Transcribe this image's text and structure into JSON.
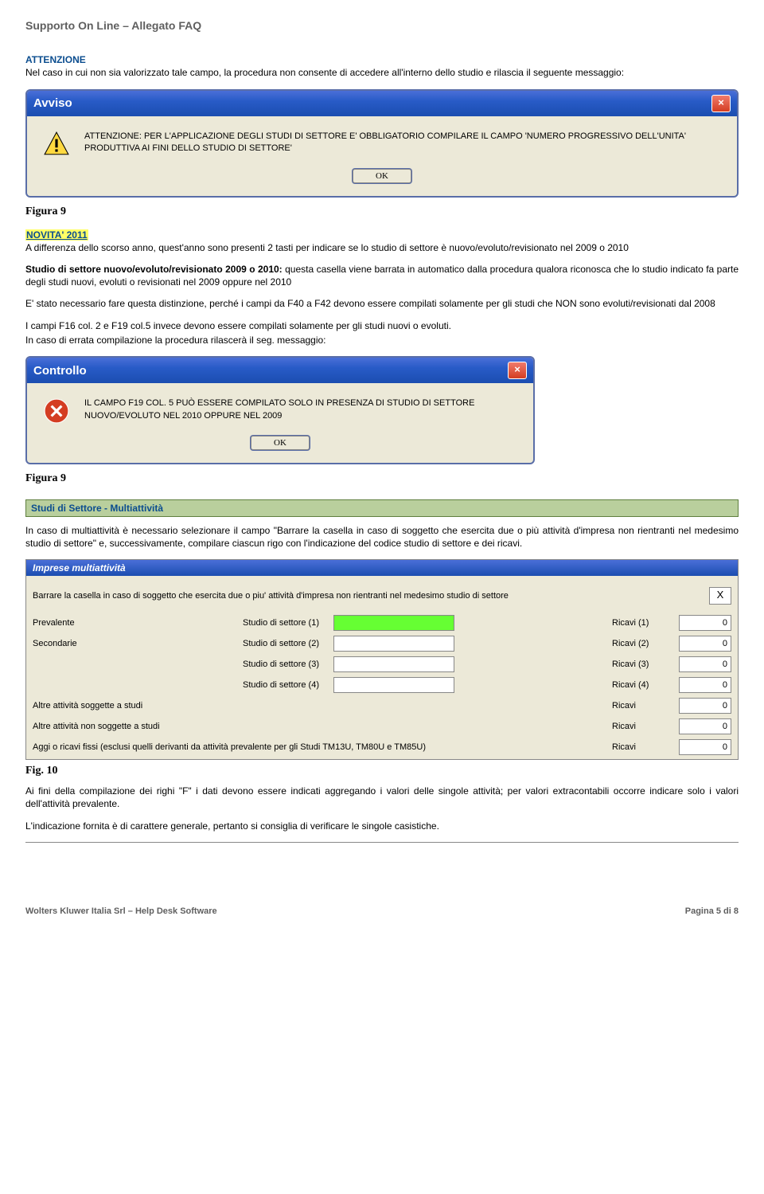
{
  "header": {
    "title": "Supporto On Line – Allegato FAQ"
  },
  "attention": {
    "label": "ATTENZIONE",
    "text": "Nel caso in cui non sia valorizzato tale campo, la procedura non consente di accedere all'interno dello studio e rilascia il seguente messaggio:"
  },
  "dialog1": {
    "title": "Avviso",
    "body": "ATTENZIONE: PER L'APPLICAZIONE DEGLI STUDI DI SETTORE E' OBBLIGATORIO COMPILARE IL CAMPO 'NUMERO PROGRESSIVO DELL'UNITA' PRODUTTIVA AI FINI DELLO STUDIO DI SETTORE'",
    "ok": "OK"
  },
  "fig9": "Figura 9",
  "novita": {
    "label": "NOVITA' 2011",
    "text1": "A differenza dello scorso anno, quest'anno sono presenti 2 tasti per indicare se lo studio di settore è nuovo/evoluto/revisionato nel 2009 o 2010",
    "bold": "Studio di settore nuovo/evoluto/revisionato 2009 o 2010:",
    "text2": " questa casella viene barrata in automatico dalla procedura qualora riconosca che lo studio indicato fa parte degli studi nuovi, evoluti o revisionati nel 2009 oppure nel 2010"
  },
  "para3": "E' stato necessario fare questa distinzione, perché i campi da F40 a F42 devono essere compilati solamente per gli studi che NON sono evoluti/revisionati dal 2008",
  "para4": "I campi F16 col. 2 e F19 col.5 invece devono essere compilati solamente per gli studi nuovi o evoluti.",
  "para5": "In caso di errata compilazione la procedura rilascerà il seg. messaggio:",
  "dialog2": {
    "title": "Controllo",
    "body": "IL CAMPO F19 COL. 5 PUÒ ESSERE COMPILATO SOLO IN PRESENZA DI STUDIO DI SETTORE NUOVO/EVOLUTO NEL 2010 OPPURE NEL 2009",
    "ok": "OK"
  },
  "section_multi": {
    "heading": "Studi di Settore - Multiattività",
    "text": "In caso di multiattività è necessario selezionare il campo \"Barrare la casella in caso di soggetto che esercita due o più attività d'impresa non rientranti nel medesimo studio di settore\" e, successivamente, compilare ciascun rigo con l'indicazione del codice studio di settore e dei ricavi."
  },
  "panel": {
    "title": "Imprese multiattività",
    "barrare": "Barrare la casella in caso di soggetto che esercita due o piu' attività d'impresa non rientranti nel medesimo studio di settore",
    "xval": "X",
    "rows": [
      {
        "left": "Prevalente",
        "label": "Studio di settore (1)",
        "green": true,
        "ricavi": "Ricavi (1)",
        "val": "0"
      },
      {
        "left": "Secondarie",
        "label": "Studio di settore (2)",
        "green": false,
        "ricavi": "Ricavi (2)",
        "val": "0"
      },
      {
        "left": "",
        "label": "Studio di settore (3)",
        "green": false,
        "ricavi": "Ricavi (3)",
        "val": "0"
      },
      {
        "left": "",
        "label": "Studio di settore (4)",
        "green": false,
        "ricavi": "Ricavi (4)",
        "val": "0"
      }
    ],
    "otherRows": [
      {
        "left": "Altre attività soggette a studi",
        "ricavi": "Ricavi",
        "val": "0"
      },
      {
        "left": "Altre attività non soggette a studi",
        "ricavi": "Ricavi",
        "val": "0"
      },
      {
        "left": "Aggi o ricavi fissi (esclusi quelli derivanti da attività prevalente per gli Studi TM13U, TM80U e TM85U)",
        "ricavi": "Ricavi",
        "val": "0"
      }
    ]
  },
  "fig10": "Fig. 10",
  "para_after": "Ai fini della compilazione dei righi \"F\" i dati devono essere indicati aggregando i valori delle singole attività; per valori extracontabili occorre indicare solo i valori dell'attività prevalente.",
  "para_last": "L'indicazione fornita è di carattere generale, pertanto si consiglia di verificare le singole casistiche.",
  "footer": {
    "left": "Wolters Kluwer Italia Srl – Help Desk Software",
    "right": "Pagina 5 di 8"
  }
}
